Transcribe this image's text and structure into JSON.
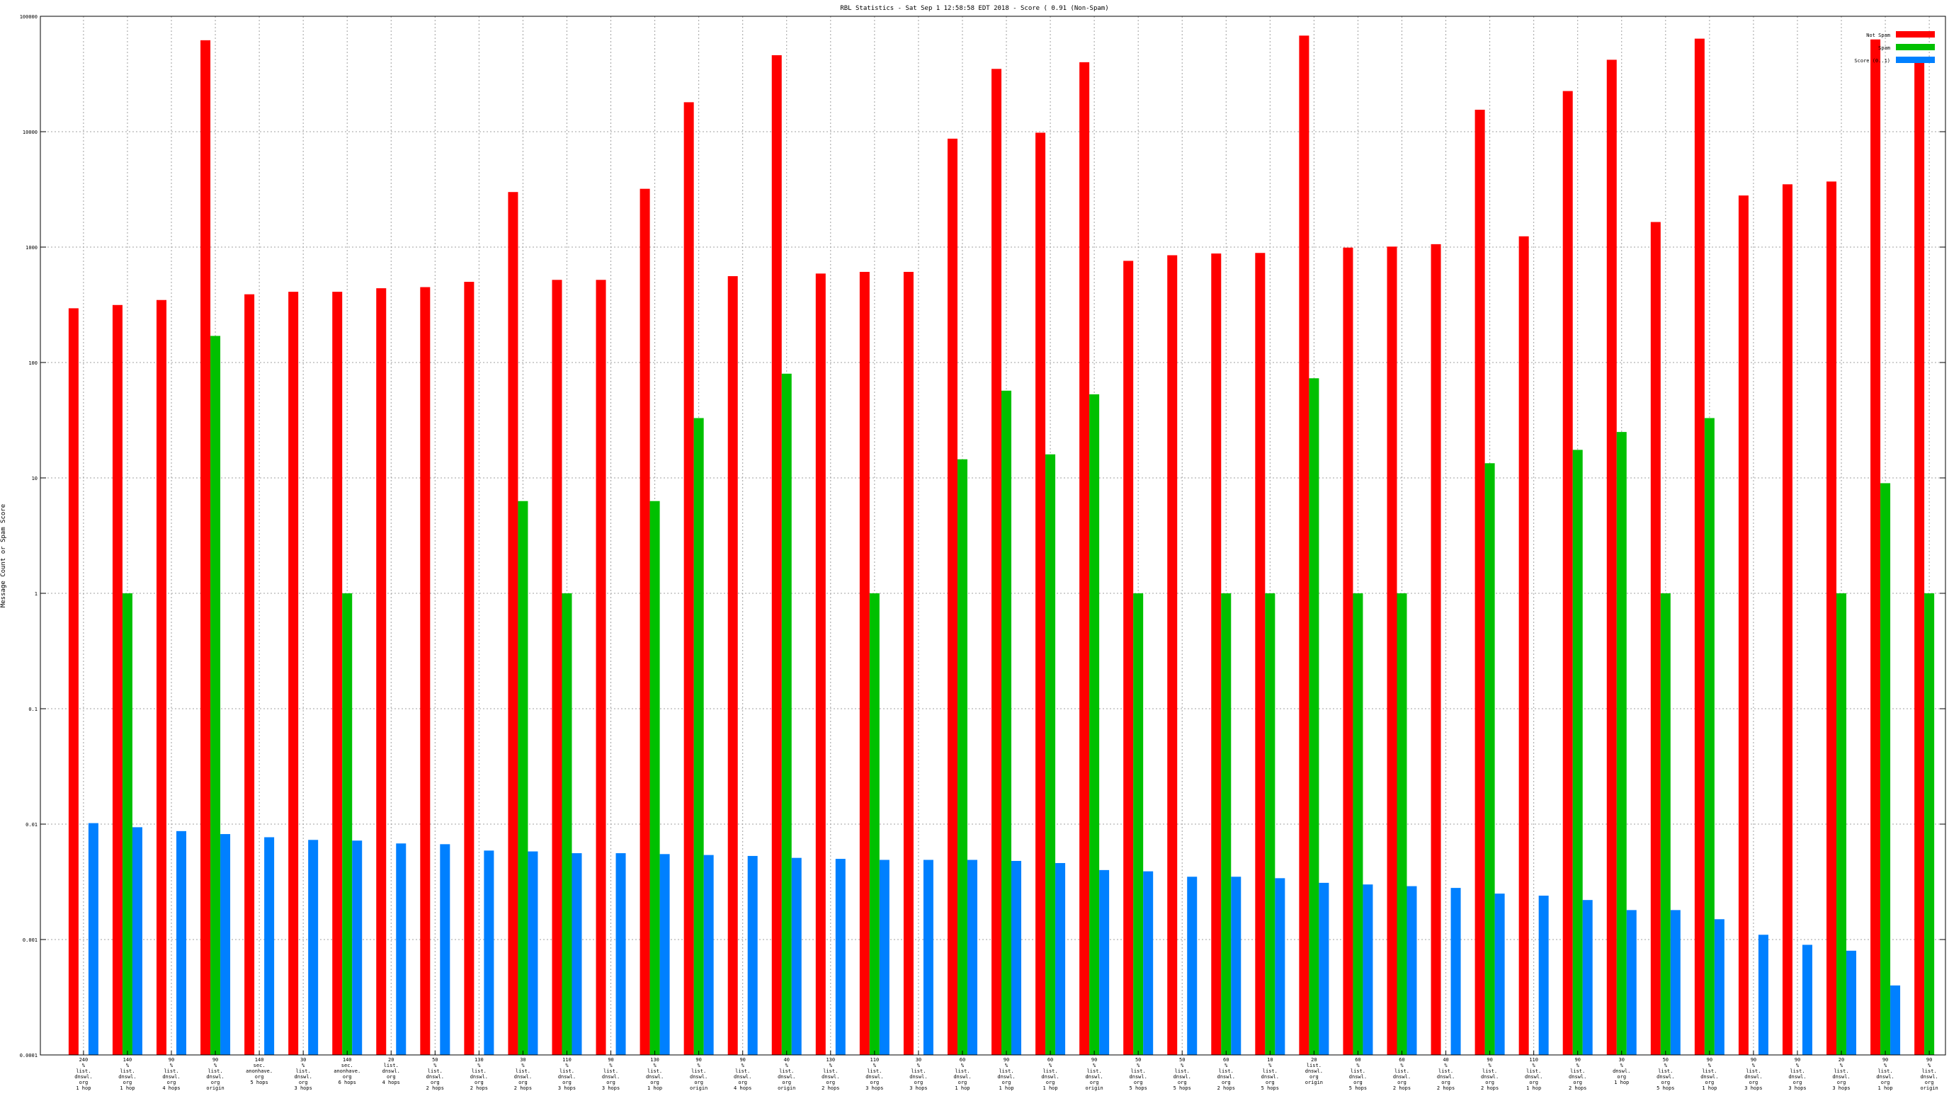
{
  "chart_data": {
    "type": "bar",
    "title": "RBL Statistics - Sat Sep  1 12:58:58 EDT 2018 - Score ( 0.91 (Non-Spam)",
    "xlabel": "",
    "ylabel": "Message Count or Spam Score",
    "yscale": "log",
    "ylim": [
      0.0001,
      100000
    ],
    "yticks": [
      {
        "value": 0.0001,
        "label": "0.0001"
      },
      {
        "value": 0.001,
        "label": "0.001"
      },
      {
        "value": 0.01,
        "label": "0.01"
      },
      {
        "value": 0.1,
        "label": "0.1"
      },
      {
        "value": 1,
        "label": "1"
      },
      {
        "value": 10,
        "label": "10"
      },
      {
        "value": 100,
        "label": "100"
      },
      {
        "value": 1000,
        "label": "1000"
      },
      {
        "value": 10000,
        "label": "10000"
      },
      {
        "value": 100000,
        "label": "100000"
      }
    ],
    "grid": true,
    "legend_position": "top-right",
    "categories": [
      [
        "240",
        "%",
        "list.",
        "dnswl.",
        "org",
        "1 hop"
      ],
      [
        "140",
        "%",
        "list.",
        "dnswl.",
        "org",
        "1 hop"
      ],
      [
        "90",
        "%",
        "list.",
        "dnswl.",
        "org",
        "4 hops"
      ],
      [
        "90",
        "%",
        "list.",
        "dnswl.",
        "org",
        "origin"
      ],
      [
        "140",
        "sec.",
        "anonhave.",
        "org",
        "5 hops"
      ],
      [
        "30",
        "%",
        "list.",
        "dnswl.",
        "org",
        "3 hops"
      ],
      [
        "140",
        "sec.",
        "anonhave.",
        "org",
        "6 hops"
      ],
      [
        "20",
        "list.",
        "dnswl.",
        "org",
        "4 hops"
      ],
      [
        "50",
        "%",
        "list.",
        "dnswl.",
        "org",
        "2 hops"
      ],
      [
        "130",
        "%",
        "list.",
        "dnswl.",
        "org",
        "2 hops"
      ],
      [
        "30",
        "%",
        "list.",
        "dnswl.",
        "org",
        "2 hops"
      ],
      [
        "110",
        "%",
        "list.",
        "dnswl.",
        "org",
        "3 hops"
      ],
      [
        "90",
        "%",
        "list.",
        "dnswl.",
        "org",
        "3 hops"
      ],
      [
        "130",
        "%",
        "list.",
        "dnswl.",
        "org",
        "1 hop"
      ],
      [
        "90",
        "%",
        "list.",
        "dnswl.",
        "org",
        "origin"
      ],
      [
        "90",
        "%",
        "list.",
        "dnswl.",
        "org",
        "4 hops"
      ],
      [
        "40",
        "%",
        "list.",
        "dnswl.",
        "org",
        "origin"
      ],
      [
        "130",
        "%",
        "list.",
        "dnswl.",
        "org",
        "2 hops"
      ],
      [
        "110",
        "%",
        "list.",
        "dnswl.",
        "org",
        "3 hops"
      ],
      [
        "30",
        "%",
        "list.",
        "dnswl.",
        "org",
        "3 hops"
      ],
      [
        "60",
        "%",
        "list.",
        "dnswl.",
        "org",
        "1 hop"
      ],
      [
        "90",
        "%",
        "list.",
        "dnswl.",
        "org",
        "1 hop"
      ],
      [
        "60",
        "%",
        "list.",
        "dnswl.",
        "org",
        "1 hop"
      ],
      [
        "90",
        "%",
        "list.",
        "dnswl.",
        "org",
        "origin"
      ],
      [
        "50",
        "%",
        "list.",
        "dnswl.",
        "org",
        "5 hops"
      ],
      [
        "50",
        "%",
        "list.",
        "dnswl.",
        "org",
        "5 hops"
      ],
      [
        "60",
        "%",
        "list.",
        "dnswl.",
        "org",
        "2 hops"
      ],
      [
        "10",
        "%",
        "list.",
        "dnswl.",
        "org",
        "5 hops"
      ],
      [
        "20",
        "list.",
        "dnswl.",
        "org",
        "origin"
      ],
      [
        "60",
        "%",
        "list.",
        "dnswl.",
        "org",
        "5 hops"
      ],
      [
        "60",
        "%",
        "list.",
        "dnswl.",
        "org",
        "2 hops"
      ],
      [
        "40",
        "%",
        "list.",
        "dnswl.",
        "org",
        "2 hops"
      ],
      [
        "90",
        "%",
        "list.",
        "dnswl.",
        "org",
        "2 hops"
      ],
      [
        "110",
        "%",
        "list.",
        "dnswl.",
        "org",
        "1 hop"
      ],
      [
        "90",
        "%",
        "list.",
        "dnswl.",
        "org",
        "2 hops"
      ],
      [
        "30",
        "%",
        "dnswl.",
        "org",
        "1 hop"
      ],
      [
        "50",
        "%",
        "list.",
        "dnswl.",
        "org",
        "5 hops"
      ],
      [
        "90",
        "%",
        "list.",
        "dnswl.",
        "org",
        "1 hop"
      ],
      [
        "90",
        "%",
        "list.",
        "dnswl.",
        "org",
        "3 hops"
      ],
      [
        "90",
        "%",
        "list.",
        "dnswl.",
        "org",
        "3 hops"
      ],
      [
        "20",
        "%",
        "list.",
        "dnswl.",
        "org",
        "3 hops"
      ],
      [
        "90",
        "%",
        "list.",
        "dnswl.",
        "org",
        "1 hop"
      ],
      [
        "90",
        "%",
        "list.",
        "dnswl.",
        "org",
        "origin"
      ]
    ],
    "series": [
      {
        "name": "Not Spam",
        "color": "#ff0000",
        "values": [
          295,
          315,
          348,
          62000,
          390,
          410,
          410,
          440,
          450,
          500,
          3000,
          520,
          520,
          3200,
          18000,
          560,
          46000,
          590,
          610,
          610,
          8700,
          35000,
          9800,
          40000,
          760,
          850,
          880,
          890,
          68000,
          990,
          1010,
          1060,
          15500,
          1240,
          22500,
          42000,
          1650,
          64000,
          2800,
          3500,
          3700,
          63000,
          41000
        ]
      },
      {
        "name": "Spam",
        "color": "#00c000",
        "values": [
          null,
          1,
          null,
          170,
          null,
          null,
          1,
          null,
          null,
          null,
          6.3,
          1,
          null,
          6.3,
          33,
          null,
          80,
          null,
          1,
          null,
          14.5,
          57,
          16,
          53,
          1,
          null,
          1,
          1,
          73,
          1,
          1,
          null,
          13.4,
          null,
          17.5,
          25,
          1,
          33,
          null,
          null,
          1,
          9,
          1
        ]
      },
      {
        "name": "Score (0..1)",
        "color": "#0080ff",
        "values": [
          0.0102,
          0.0094,
          0.0087,
          0.0082,
          0.0077,
          0.0073,
          0.0072,
          0.0068,
          0.0067,
          0.0059,
          0.0058,
          0.0056,
          0.0056,
          0.0055,
          0.0054,
          0.0053,
          0.0051,
          0.005,
          0.0049,
          0.0049,
          0.0049,
          0.0048,
          0.0046,
          0.004,
          0.0039,
          0.0035,
          0.0035,
          0.0034,
          0.0031,
          0.003,
          0.0029,
          0.0028,
          0.0025,
          0.0024,
          0.0022,
          0.0018,
          0.0018,
          0.0015,
          0.0011,
          0.0009,
          0.0008,
          0.0004,
          null
        ]
      }
    ]
  }
}
